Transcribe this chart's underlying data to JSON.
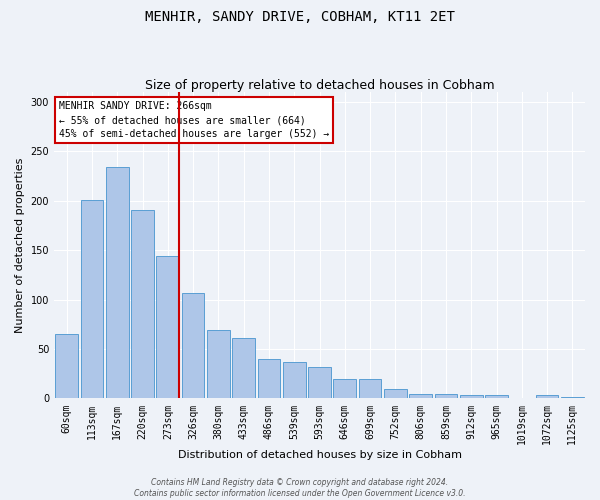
{
  "title": "MENHIR, SANDY DRIVE, COBHAM, KT11 2ET",
  "subtitle": "Size of property relative to detached houses in Cobham",
  "xlabel": "Distribution of detached houses by size in Cobham",
  "ylabel": "Number of detached properties",
  "categories": [
    "60sqm",
    "113sqm",
    "167sqm",
    "220sqm",
    "273sqm",
    "326sqm",
    "380sqm",
    "433sqm",
    "486sqm",
    "539sqm",
    "593sqm",
    "646sqm",
    "699sqm",
    "752sqm",
    "806sqm",
    "859sqm",
    "912sqm",
    "965sqm",
    "1019sqm",
    "1072sqm",
    "1125sqm"
  ],
  "values": [
    65,
    201,
    234,
    191,
    144,
    107,
    69,
    61,
    40,
    37,
    32,
    20,
    20,
    10,
    5,
    5,
    4,
    3,
    0,
    3,
    1
  ],
  "bar_color": "#aec6e8",
  "bar_edge_color": "#5a9fd4",
  "red_line_x": 4.45,
  "annotation_text_line1": "MENHIR SANDY DRIVE: 266sqm",
  "annotation_text_line2": "← 55% of detached houses are smaller (664)",
  "annotation_text_line3": "45% of semi-detached houses are larger (552) →",
  "annotation_box_color": "#ffffff",
  "annotation_box_edge_color": "#cc0000",
  "red_line_color": "#cc0000",
  "footer_line1": "Contains HM Land Registry data © Crown copyright and database right 2024.",
  "footer_line2": "Contains public sector information licensed under the Open Government Licence v3.0.",
  "background_color": "#eef2f8",
  "ylim": [
    0,
    310
  ],
  "title_fontsize": 10,
  "subtitle_fontsize": 9,
  "tick_fontsize": 7,
  "ylabel_fontsize": 8,
  "xlabel_fontsize": 8,
  "annot_fontsize": 7
}
